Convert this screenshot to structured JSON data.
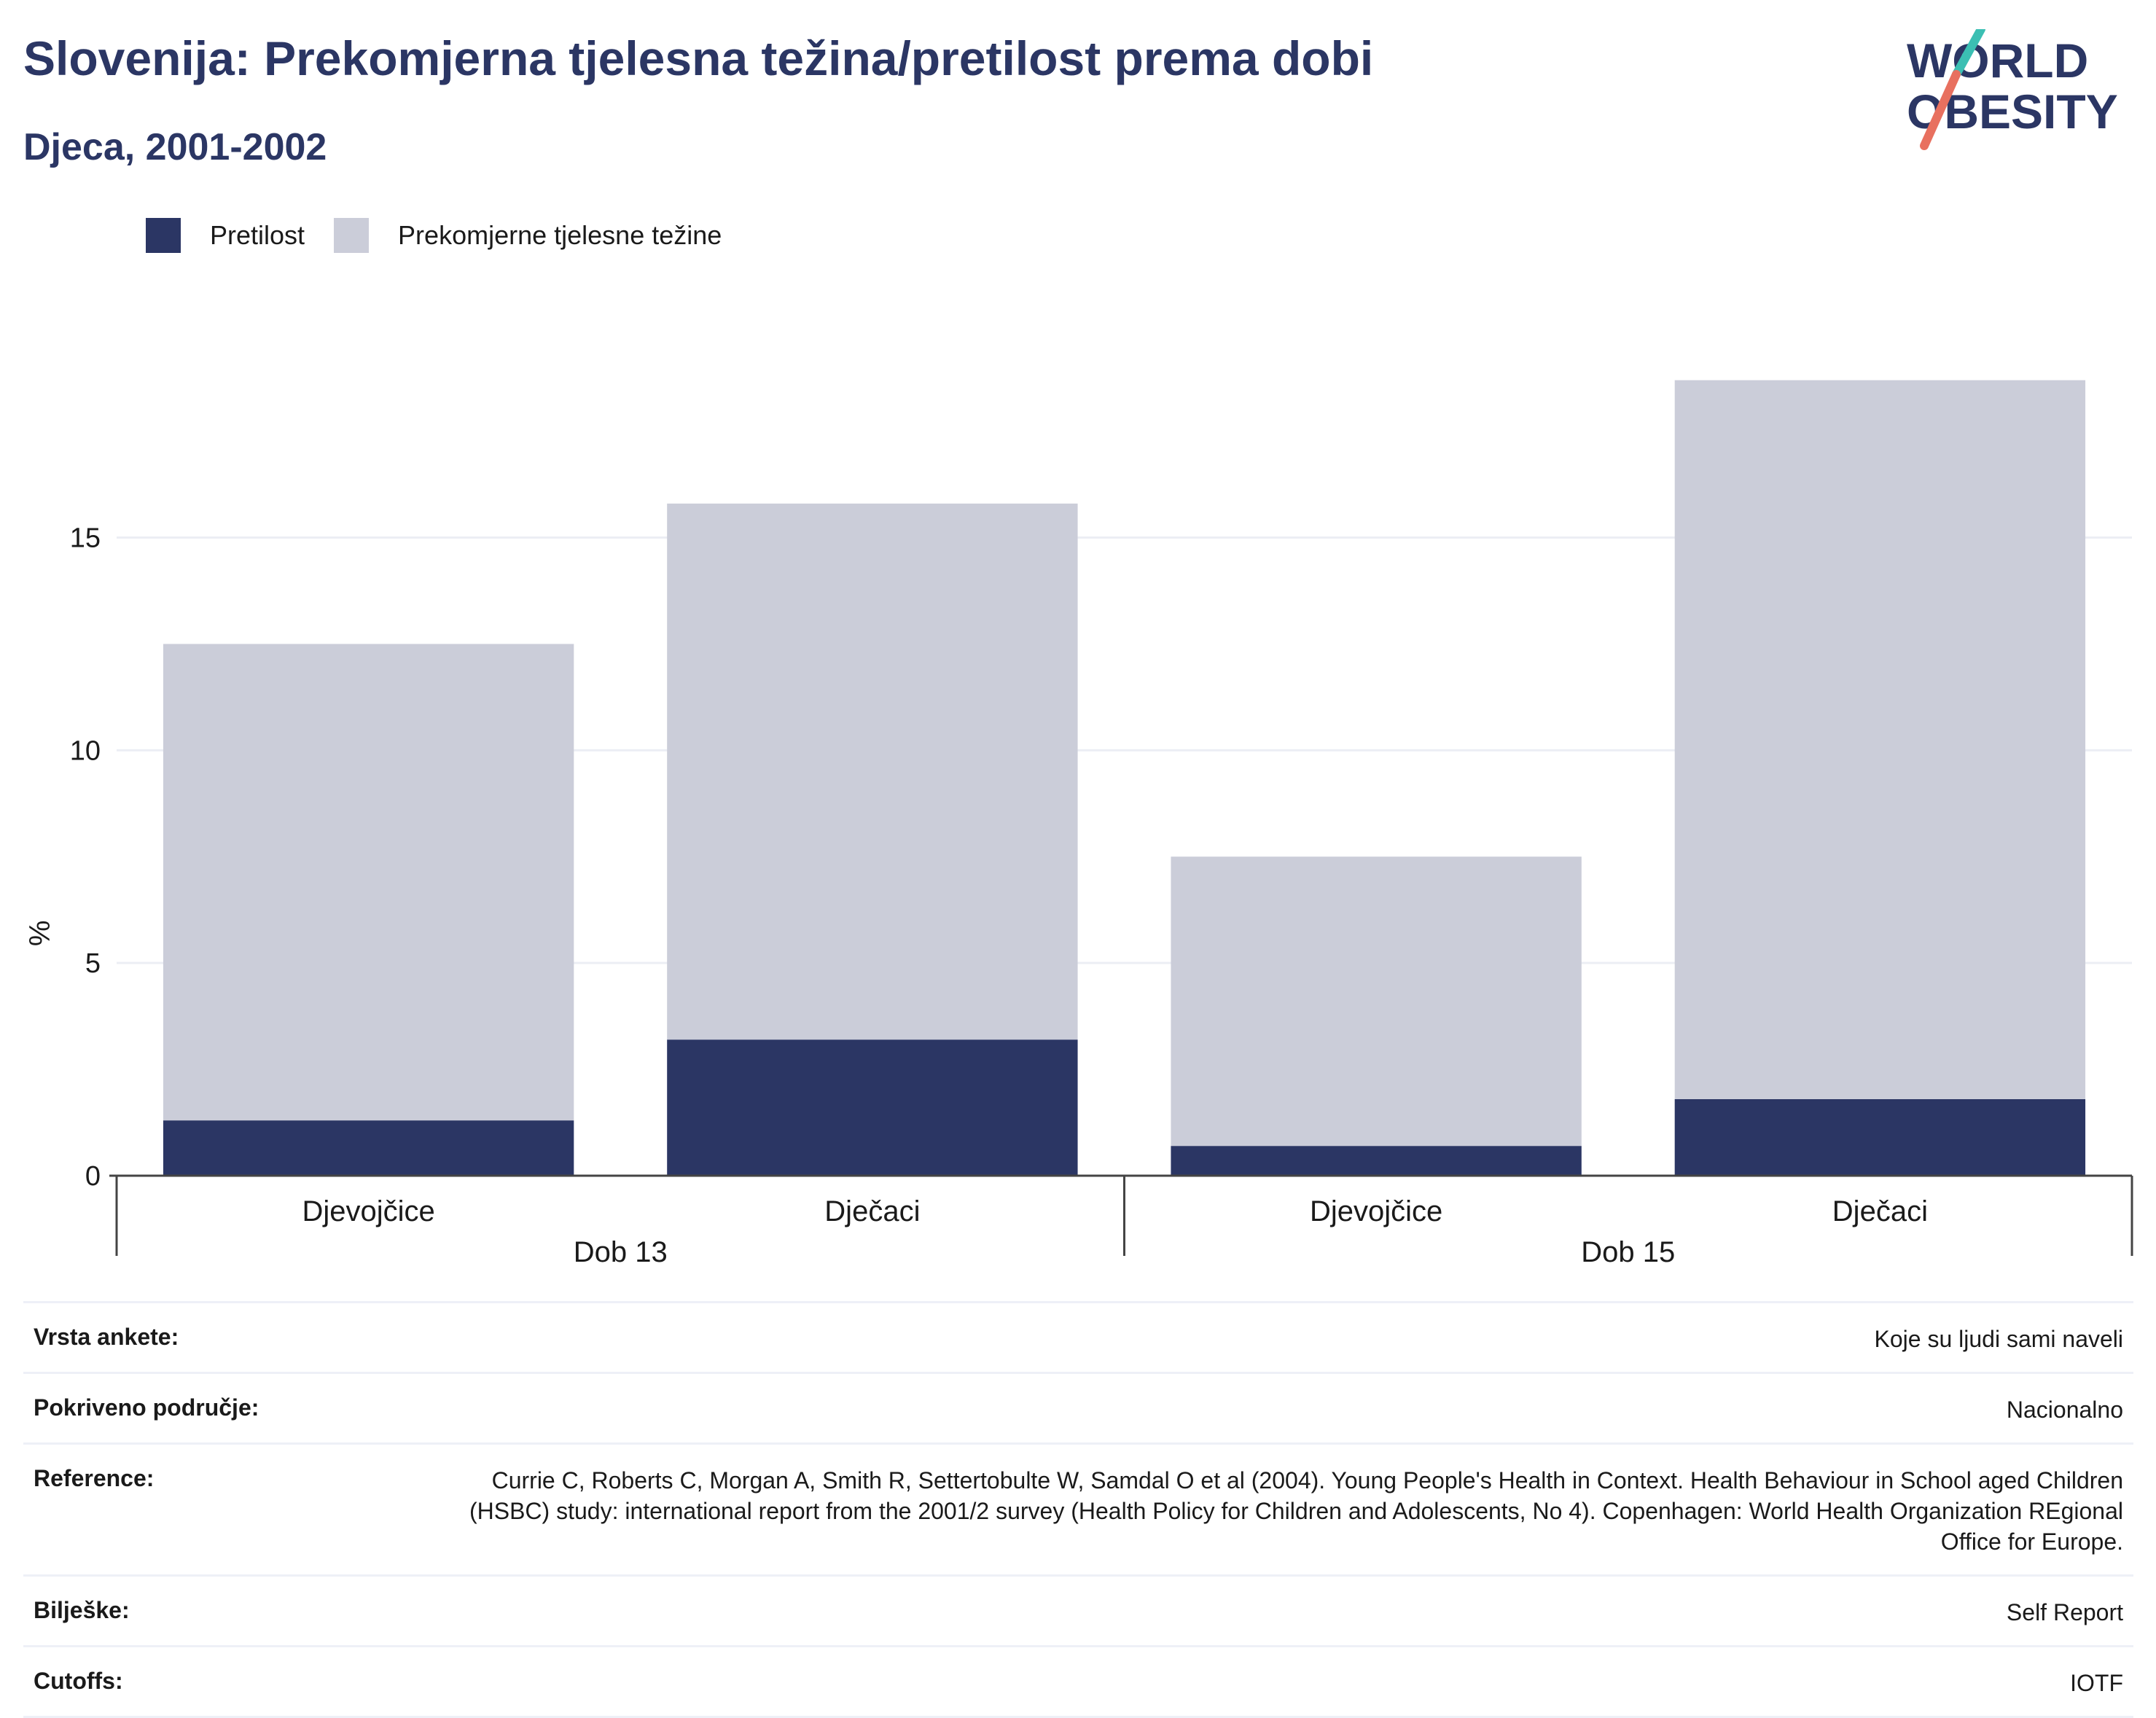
{
  "title": "Slovenija: Prekomjerna tjelesna težina/pretilost prema dobi",
  "subtitle": "Djeca, 2001-2002",
  "logo": {
    "line1": "WORLD",
    "line2": "OBESITY"
  },
  "colors": {
    "obesity": "#2b3664",
    "overweight": "#cbcdd9",
    "title": "#2b3664",
    "logo_teal": "#3bbfb3",
    "logo_coral": "#e8705f"
  },
  "legend": [
    "Pretilost",
    "Prekomjerne tjelesne težine"
  ],
  "chart_data": {
    "type": "bar",
    "stacked": true,
    "ylabel": "%",
    "ylim": [
      0,
      20
    ],
    "yticks": [
      0,
      5,
      10,
      15
    ],
    "grid": true,
    "legend_position": "top-left",
    "groups": [
      {
        "label": "Dob 13",
        "categories": [
          "Djevojčice",
          "Dječaci"
        ]
      },
      {
        "label": "Dob 15",
        "categories": [
          "Djevojčice",
          "Dječaci"
        ]
      }
    ],
    "series": [
      {
        "name": "Pretilost",
        "values": [
          1.3,
          3.2,
          0.7,
          1.8
        ]
      },
      {
        "name": "Prekomjerne tjelesne težine",
        "values": [
          11.2,
          12.6,
          6.8,
          16.9
        ]
      }
    ]
  },
  "meta": [
    {
      "key": "Vrsta ankete:",
      "value": "Koje su ljudi sami naveli"
    },
    {
      "key": "Pokriveno područje:",
      "value": "Nacionalno"
    },
    {
      "key": "Reference:",
      "value": "Currie C, Roberts C, Morgan A, Smith R, Settertobulte W, Samdal O et al (2004). Young People's Health in Context. Health Behaviour in School aged Children (HSBC) study: international report from the 2001/2 survey (Health Policy for Children and Adolescents, No 4). Copenhagen: World Health Organization REgional Office for Europe."
    },
    {
      "key": "Bilješke:",
      "value": "Self Report"
    },
    {
      "key": "Cutoffs:",
      "value": "IOTF"
    }
  ]
}
